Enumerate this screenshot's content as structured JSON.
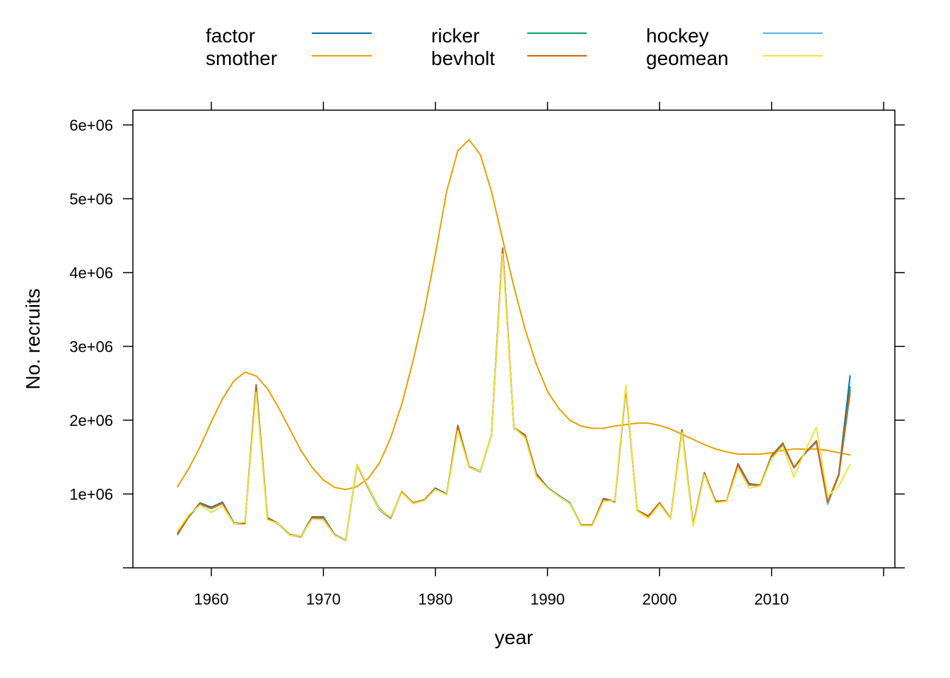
{
  "chart_data": {
    "type": "line",
    "xlabel": "year",
    "ylabel": "No. recruits",
    "xlim": [
      1953,
      2021
    ],
    "ylim": [
      0,
      6200000
    ],
    "x_ticks": [
      1960,
      1970,
      1980,
      1990,
      2000,
      2010
    ],
    "x_tick_labels": [
      "1960",
      "1970",
      "1980",
      "1990",
      "2000",
      "2010"
    ],
    "y_ticks": [
      1000000,
      2000000,
      3000000,
      4000000,
      5000000,
      6000000
    ],
    "y_tick_labels": [
      "1e+06",
      "2e+06",
      "3e+06",
      "4e+06",
      "5e+06",
      "6e+06"
    ],
    "legend_position": "top",
    "x": [
      1957,
      1958,
      1959,
      1960,
      1961,
      1962,
      1963,
      1964,
      1965,
      1966,
      1967,
      1968,
      1969,
      1970,
      1971,
      1972,
      1973,
      1974,
      1975,
      1976,
      1977,
      1978,
      1979,
      1980,
      1981,
      1982,
      1983,
      1984,
      1985,
      1986,
      1987,
      1988,
      1989,
      1990,
      1991,
      1992,
      1993,
      1994,
      1995,
      1996,
      1997,
      1998,
      1999,
      2000,
      2001,
      2002,
      2003,
      2004,
      2005,
      2006,
      2007,
      2008,
      2009,
      2010,
      2011,
      2012,
      2013,
      2014,
      2015,
      2016,
      2017
    ],
    "series": [
      {
        "name": "factor",
        "color": "#0072B2",
        "values": [
          470000,
          700000,
          880000,
          820000,
          890000,
          610000,
          610000,
          2480000,
          680000,
          600000,
          450000,
          430000,
          690000,
          690000,
          450000,
          380000,
          1400000,
          1100000,
          800000,
          680000,
          1030000,
          880000,
          920000,
          1080000,
          1000000,
          1930000,
          1370000,
          1310000,
          1800000,
          4330000,
          1900000,
          1800000,
          1280000,
          1090000,
          980000,
          880000,
          580000,
          580000,
          940000,
          900000,
          2450000,
          780000,
          700000,
          880000,
          670000,
          1870000,
          580000,
          1290000,
          900000,
          910000,
          1410000,
          1140000,
          1120000,
          1520000,
          1690000,
          1360000,
          1560000,
          1720000,
          880000,
          1270000,
          2600000
        ]
      },
      {
        "name": "ricker",
        "color": "#009E73",
        "values": [
          460000,
          700000,
          870000,
          810000,
          880000,
          600000,
          600000,
          2460000,
          670000,
          600000,
          450000,
          420000,
          680000,
          680000,
          440000,
          380000,
          1390000,
          1090000,
          790000,
          680000,
          1030000,
          880000,
          920000,
          1070000,
          990000,
          1920000,
          1370000,
          1310000,
          1800000,
          4320000,
          1900000,
          1800000,
          1270000,
          1080000,
          970000,
          870000,
          580000,
          580000,
          930000,
          900000,
          2440000,
          780000,
          700000,
          880000,
          670000,
          1860000,
          580000,
          1280000,
          900000,
          910000,
          1400000,
          1130000,
          1120000,
          1510000,
          1680000,
          1360000,
          1560000,
          1710000,
          890000,
          1260000,
          2450000
        ]
      },
      {
        "name": "hockey",
        "color": "#56B4E9",
        "values": [
          450000,
          690000,
          860000,
          800000,
          870000,
          600000,
          600000,
          2440000,
          660000,
          590000,
          440000,
          420000,
          670000,
          670000,
          440000,
          370000,
          1390000,
          1080000,
          780000,
          670000,
          1020000,
          870000,
          910000,
          1070000,
          990000,
          1910000,
          1360000,
          1300000,
          1790000,
          4310000,
          1890000,
          1790000,
          1260000,
          1080000,
          970000,
          870000,
          570000,
          570000,
          930000,
          890000,
          2430000,
          770000,
          690000,
          870000,
          660000,
          1850000,
          570000,
          1270000,
          890000,
          900000,
          1390000,
          1120000,
          1110000,
          1500000,
          1670000,
          1350000,
          1550000,
          1700000,
          860000,
          1250000,
          2350000
        ]
      },
      {
        "name": "smother",
        "color": "#E69F00",
        "values": [
          1100000,
          1350000,
          1640000,
          1980000,
          2290000,
          2530000,
          2650000,
          2600000,
          2430000,
          2170000,
          1880000,
          1590000,
          1360000,
          1190000,
          1090000,
          1060000,
          1100000,
          1210000,
          1420000,
          1760000,
          2220000,
          2800000,
          3470000,
          4250000,
          5100000,
          5650000,
          5800000,
          5600000,
          5100000,
          4450000,
          3810000,
          3230000,
          2760000,
          2390000,
          2160000,
          2000000,
          1920000,
          1890000,
          1890000,
          1920000,
          1940000,
          1960000,
          1960000,
          1930000,
          1880000,
          1810000,
          1740000,
          1670000,
          1610000,
          1570000,
          1540000,
          1540000,
          1540000,
          1560000,
          1590000,
          1610000,
          1610000,
          1610000,
          1590000,
          1560000,
          1530000
        ]
      },
      {
        "name": "bevholt",
        "color": "#D55E00",
        "values": [
          460000,
          700000,
          870000,
          810000,
          880000,
          600000,
          600000,
          2460000,
          670000,
          600000,
          450000,
          420000,
          680000,
          680000,
          440000,
          380000,
          1390000,
          1090000,
          790000,
          680000,
          1030000,
          880000,
          920000,
          1070000,
          990000,
          1920000,
          1370000,
          1310000,
          1800000,
          4320000,
          1900000,
          1800000,
          1270000,
          1080000,
          970000,
          870000,
          580000,
          580000,
          930000,
          900000,
          2440000,
          780000,
          700000,
          880000,
          670000,
          1860000,
          580000,
          1280000,
          900000,
          910000,
          1400000,
          1130000,
          1120000,
          1510000,
          1680000,
          1360000,
          1560000,
          1710000,
          890000,
          1260000,
          2400000
        ]
      },
      {
        "name": "geomean",
        "color": "#F0E442",
        "values": [
          500000,
          720000,
          850000,
          750000,
          840000,
          600000,
          620000,
          2380000,
          650000,
          600000,
          440000,
          430000,
          660000,
          650000,
          440000,
          380000,
          1400000,
          1100000,
          790000,
          690000,
          1020000,
          870000,
          910000,
          1060000,
          990000,
          1860000,
          1360000,
          1310000,
          1800000,
          4250000,
          1900000,
          1760000,
          1240000,
          1080000,
          970000,
          870000,
          570000,
          570000,
          900000,
          910000,
          2480000,
          770000,
          670000,
          860000,
          660000,
          1830000,
          560000,
          1260000,
          880000,
          900000,
          1350000,
          1080000,
          1110000,
          1480000,
          1640000,
          1230000,
          1590000,
          1900000,
          970000,
          1110000,
          1400000
        ]
      }
    ]
  },
  "legend": {
    "items": [
      {
        "name": "factor",
        "color": "#0072B2"
      },
      {
        "name": "smother",
        "color": "#E69F00"
      },
      {
        "name": "ricker",
        "color": "#009E73"
      },
      {
        "name": "bevholt",
        "color": "#D55E00"
      },
      {
        "name": "hockey",
        "color": "#56B4E9"
      },
      {
        "name": "geomean",
        "color": "#F0E442"
      }
    ]
  }
}
